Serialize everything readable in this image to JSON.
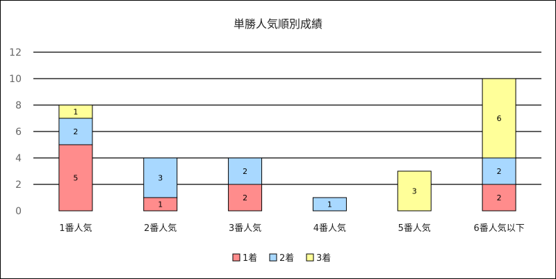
{
  "chart_data": {
    "type": "bar",
    "stacked": true,
    "title": "単勝人気順別成績",
    "xlabel": "",
    "ylabel": "",
    "ylim": [
      0,
      12
    ],
    "yticks": [
      0,
      2,
      4,
      6,
      8,
      10,
      12
    ],
    "grid": true,
    "legend_position": "bottom",
    "categories": [
      "1番人気",
      "2番人気",
      "3番人気",
      "4番人気",
      "5番人気",
      "6番人気以下"
    ],
    "series": [
      {
        "name": "1着",
        "color": "#ff8c8c",
        "values": [
          5,
          1,
          2,
          0,
          0,
          2
        ]
      },
      {
        "name": "2着",
        "color": "#a8d8ff",
        "values": [
          2,
          3,
          2,
          1,
          0,
          2
        ]
      },
      {
        "name": "3着",
        "color": "#ffff99",
        "values": [
          1,
          0,
          0,
          0,
          3,
          6
        ]
      }
    ]
  }
}
